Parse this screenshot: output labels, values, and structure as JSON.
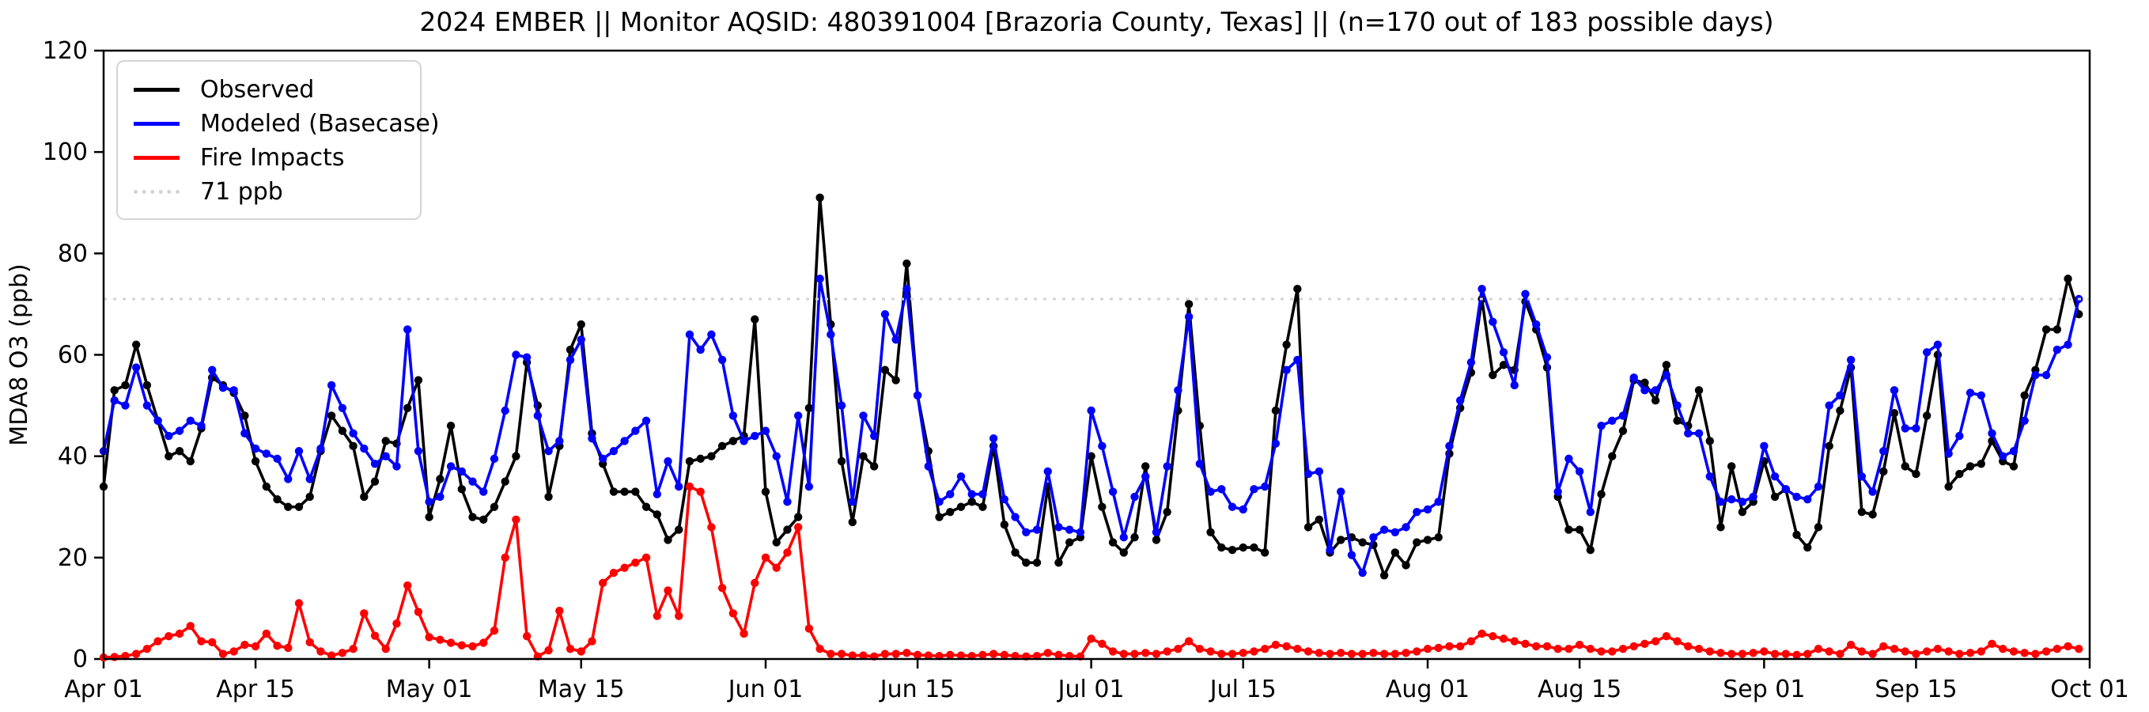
{
  "title": "2024 EMBER || Monitor AQSID: 480391004 [Brazoria County, Texas] || (n=170 out of 183 possible days)",
  "chart_data": {
    "type": "line",
    "title": "2024 EMBER || Monitor AQSID: 480391004 [Brazoria County, Texas] || (n=170 out of 183 possible days)",
    "xlabel": "",
    "ylabel": "MDA8 O3 (ppb)",
    "ylim": [
      0,
      120
    ],
    "grid": false,
    "legend_position": "upper left",
    "x_axis": {
      "start_date": "Apr 01",
      "end_date": "Oct 01",
      "total_days": 183,
      "ticks": [
        {
          "label": "Apr 01",
          "day": 0
        },
        {
          "label": "Apr 15",
          "day": 14
        },
        {
          "label": "May 01",
          "day": 30
        },
        {
          "label": "May 15",
          "day": 44
        },
        {
          "label": "Jun 01",
          "day": 61
        },
        {
          "label": "Jun 15",
          "day": 75
        },
        {
          "label": "Jul 01",
          "day": 91
        },
        {
          "label": "Jul 15",
          "day": 105
        },
        {
          "label": "Aug 01",
          "day": 122
        },
        {
          "label": "Aug 15",
          "day": 136
        },
        {
          "label": "Sep 01",
          "day": 153
        },
        {
          "label": "Sep 15",
          "day": 167
        },
        {
          "label": "Oct 01",
          "day": 183
        }
      ]
    },
    "y_axis": {
      "label": "MDA8 O3 (ppb)",
      "ticks": [
        0,
        20,
        40,
        60,
        80,
        100,
        120
      ]
    },
    "threshold": {
      "label": "71 ppb",
      "value": 71,
      "color": "#d3d3d3"
    },
    "series": [
      {
        "name": "Observed",
        "color": "#000000",
        "values": [
          34,
          53,
          54,
          62,
          54,
          47,
          40,
          41,
          39,
          45.5,
          55.5,
          54,
          52.5,
          48,
          39,
          34,
          31.5,
          30,
          30,
          32,
          41,
          48,
          45,
          42,
          32,
          35,
          43,
          42.5,
          49.5,
          55,
          28,
          35.5,
          46,
          33.5,
          28,
          27.5,
          30,
          35,
          40,
          58.5,
          50,
          32,
          42,
          61,
          66,
          44.5,
          38.5,
          33,
          33,
          33,
          30,
          28.5,
          23.5,
          25.5,
          39,
          39.5,
          40,
          42,
          43,
          44,
          67,
          33,
          23,
          25.5,
          28,
          49.5,
          91,
          66,
          39,
          27,
          40,
          38,
          57,
          55,
          78,
          52,
          41,
          28,
          29,
          30,
          31,
          30,
          42,
          26.5,
          21,
          19,
          19,
          34,
          19,
          23,
          24,
          40,
          30,
          23,
          21,
          24,
          38,
          23.5,
          29,
          49,
          70,
          46,
          25,
          22,
          21.5,
          22,
          22,
          21,
          49,
          62,
          73,
          26,
          27.5,
          21,
          23.5,
          24,
          23,
          22.5,
          16.5,
          21,
          18.5,
          23,
          23.5,
          24,
          40.5,
          49.5,
          56.5,
          71,
          56,
          58,
          57,
          70.5,
          65,
          57.5,
          32,
          25.5,
          25.5,
          21.5,
          32.5,
          40,
          45,
          55,
          54.5,
          51,
          58,
          47,
          46,
          53,
          43,
          26,
          38,
          29,
          31,
          39,
          32,
          33.5,
          24.5,
          22,
          26,
          42,
          49,
          57.5,
          29,
          28.5,
          37,
          48.5,
          38,
          36.5,
          48,
          60,
          34,
          36.5,
          38,
          38.5,
          43,
          39,
          38,
          52,
          57,
          65,
          65,
          75,
          68
        ]
      },
      {
        "name": "Modeled (Basecase)",
        "color": "#0000ff",
        "values": [
          41,
          51,
          50,
          57.5,
          50,
          47,
          44,
          45,
          47,
          46,
          57,
          53.5,
          53,
          44.5,
          41.5,
          40.5,
          39.5,
          35.5,
          41,
          35.5,
          41.5,
          54,
          49.5,
          44.5,
          41.5,
          38.5,
          40,
          38,
          65,
          41,
          31,
          32,
          38,
          37,
          35,
          33,
          39.5,
          49,
          60,
          59.5,
          48,
          41,
          43,
          59,
          63,
          43.5,
          39.5,
          41,
          43,
          45,
          47,
          32.5,
          39,
          34,
          64,
          61,
          64,
          59,
          48,
          43,
          44,
          45,
          40,
          31,
          48,
          34,
          75,
          64,
          50,
          31,
          48,
          44,
          68,
          63,
          73,
          52,
          38,
          31,
          32.5,
          36,
          32.5,
          32.5,
          43.5,
          31.5,
          28,
          25,
          25.5,
          37,
          26,
          25.5,
          25,
          49,
          42,
          33,
          24,
          32,
          36,
          25,
          38,
          53,
          67.5,
          38.5,
          33,
          33.5,
          30,
          29.5,
          33.5,
          34,
          42.5,
          57,
          59,
          36.5,
          37,
          21.5,
          33,
          20.5,
          17,
          24,
          25.5,
          25,
          26,
          29,
          29.5,
          31,
          42,
          51,
          58.5,
          73,
          66.5,
          60.5,
          54,
          72,
          66,
          59.5,
          33,
          39.5,
          37,
          29,
          46,
          47,
          48,
          55.5,
          53,
          53,
          56,
          50,
          44.5,
          44.5,
          36,
          31,
          31.5,
          31,
          32,
          42,
          36,
          33.5,
          32,
          31.5,
          34,
          50,
          52,
          59,
          36,
          33,
          41,
          53,
          45.5,
          45.5,
          60.5,
          62,
          40.5,
          44,
          52.5,
          52,
          44.5,
          40,
          41,
          47,
          56,
          56,
          61,
          62,
          71
        ]
      },
      {
        "name": "Fire Impacts",
        "color": "#ff0000",
        "values": [
          0.3,
          0.4,
          0.6,
          1,
          2,
          3.5,
          4.5,
          5,
          6.5,
          3.5,
          3.3,
          1,
          1.5,
          2.8,
          2.5,
          5,
          2.6,
          2.2,
          11,
          3.3,
          1.5,
          0.7,
          1.2,
          2,
          9,
          4.6,
          2,
          7,
          14.5,
          9.3,
          4.3,
          3.8,
          3.2,
          2.7,
          2.5,
          3.2,
          5.6,
          20,
          27.5,
          4.5,
          0.5,
          1.7,
          9.5,
          2,
          1.5,
          3.5,
          15,
          17,
          18,
          19,
          20,
          8.5,
          13.5,
          8.5,
          34,
          33,
          26,
          14,
          9,
          5,
          15,
          20,
          18,
          21,
          26,
          6,
          2,
          1,
          1,
          0.7,
          0.7,
          0.5,
          1,
          1,
          1.2,
          0.8,
          0.7,
          0.6,
          0.8,
          0.7,
          0.6,
          0.8,
          1,
          0.8,
          0.6,
          0.5,
          0.6,
          1.2,
          0.8,
          0.6,
          0.5,
          4,
          3,
          1.5,
          1,
          1,
          1.2,
          1,
          1.5,
          2,
          3.5,
          2,
          1.5,
          1,
          1,
          1.2,
          1.5,
          2,
          2.8,
          2.5,
          2,
          1.5,
          1.2,
          1,
          1.2,
          1,
          1,
          1.2,
          1,
          1,
          1.2,
          1.5,
          2,
          2.2,
          2.5,
          2.5,
          3.5,
          5,
          4.5,
          4,
          3.5,
          3,
          2.5,
          2.5,
          2,
          2,
          2.8,
          2,
          1.5,
          1.5,
          2,
          2.5,
          3,
          3.5,
          4.5,
          3.5,
          2.5,
          2,
          1.5,
          1.2,
          1,
          1,
          1.2,
          1.5,
          1,
          1,
          0.8,
          1,
          2,
          1.5,
          1,
          2.8,
          1.5,
          1,
          2.5,
          2,
          1.5,
          1,
          1.5,
          2,
          1.5,
          1,
          1.2,
          1.5,
          3,
          2,
          1.5,
          1.2,
          1,
          1.5,
          2,
          2.5,
          2
        ]
      }
    ]
  },
  "legend": {
    "items": [
      "Observed",
      "Modeled (Basecase)",
      "Fire Impacts",
      "71 ppb"
    ]
  }
}
